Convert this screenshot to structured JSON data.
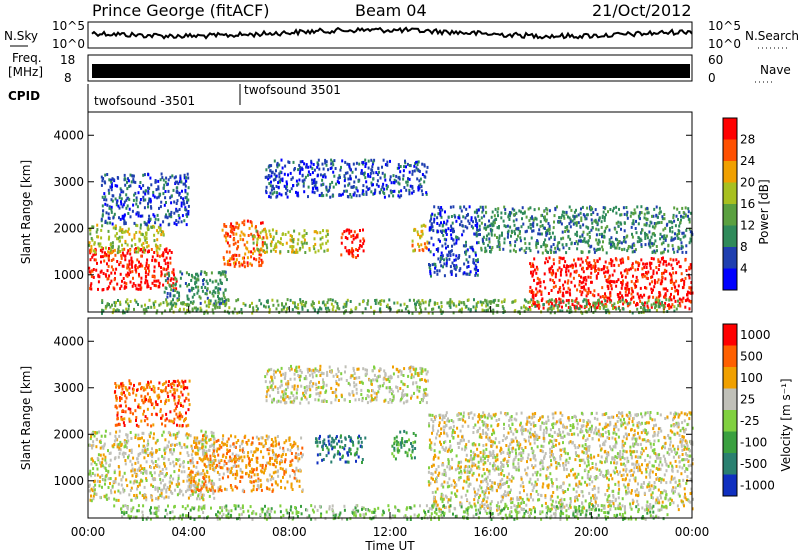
{
  "header": {
    "station": "Prince George (fitACF)",
    "beam": "Beam 04",
    "date": "21/Oct/2012"
  },
  "top_panels": {
    "nsky_label": "N.Sky",
    "nsky_ticks": [
      "10^5",
      "10^0"
    ],
    "nsearch_label": "N.Search",
    "nsearch_ticks": [
      "10^5",
      "10^0"
    ],
    "freq_label_line1": "Freq.",
    "freq_label_line2": "[MHz]",
    "freq_ticks": [
      "18",
      "8"
    ],
    "nave_label": "Nave",
    "nave_ticks": [
      "60",
      "0"
    ],
    "cpid_label": "CPID",
    "cpid_segments": [
      {
        "label": "twofsound -3501",
        "start_hour": 0
      },
      {
        "label": "twofsound 3501",
        "start_hour": 6
      }
    ]
  },
  "chart_data": [
    {
      "type": "heatmap",
      "title": "",
      "ylabel": "Slant Range [km]",
      "xlabel": "",
      "x_range_hours": [
        0,
        24
      ],
      "ylim": [
        200,
        4500
      ],
      "yticks": [
        "1000",
        "2000",
        "3000",
        "4000"
      ],
      "colorbar": {
        "label": "Power [dB]",
        "ticks": [
          "4",
          "8",
          "12",
          "16",
          "20",
          "24",
          "28"
        ],
        "colors": [
          "#0000ff",
          "#1f3fb0",
          "#2f8a5a",
          "#5aa040",
          "#a8c020",
          "#f0a000",
          "#ff5000",
          "#ff0000"
        ]
      },
      "regions": [
        {
          "t0": 0.0,
          "t1": 3.5,
          "r0": 700,
          "r1": 1600,
          "level": 7
        },
        {
          "t0": 0.0,
          "t1": 3.0,
          "r0": 1500,
          "r1": 2100,
          "level": 4
        },
        {
          "t0": 0.5,
          "t1": 4.0,
          "r0": 2100,
          "r1": 3200,
          "level": 1
        },
        {
          "t0": 3.0,
          "t1": 5.5,
          "r0": 400,
          "r1": 1100,
          "level": 2
        },
        {
          "t0": 5.3,
          "t1": 7.0,
          "r0": 1200,
          "r1": 2200,
          "level": 6
        },
        {
          "t0": 6.5,
          "t1": 9.5,
          "r0": 1500,
          "r1": 2000,
          "level": 4
        },
        {
          "t0": 7.0,
          "t1": 13.5,
          "r0": 2700,
          "r1": 3500,
          "level": 1
        },
        {
          "t0": 10.0,
          "t1": 11.0,
          "r0": 1400,
          "r1": 2000,
          "level": 7
        },
        {
          "t0": 12.8,
          "t1": 13.5,
          "r0": 1500,
          "r1": 2100,
          "level": 5
        },
        {
          "t0": 13.5,
          "t1": 15.5,
          "r0": 1000,
          "r1": 2500,
          "level": 1
        },
        {
          "t0": 15.5,
          "t1": 24.0,
          "r0": 1500,
          "r1": 2500,
          "level": 2
        },
        {
          "t0": 17.5,
          "t1": 24.0,
          "r0": 300,
          "r1": 1400,
          "level": 7
        },
        {
          "t0": 0.5,
          "t1": 23.5,
          "r0": 200,
          "r1": 500,
          "level": 3
        }
      ]
    },
    {
      "type": "heatmap",
      "title": "",
      "ylabel": "Slant Range [km]",
      "xlabel": "Time UT",
      "x_range_hours": [
        0,
        24
      ],
      "xticks": [
        "00:00",
        "04:00",
        "08:00",
        "12:00",
        "16:00",
        "20:00",
        "00:00"
      ],
      "ylim": [
        200,
        4500
      ],
      "yticks": [
        "1000",
        "2000",
        "3000",
        "4000"
      ],
      "colorbar": {
        "label": "Velocity [m s⁻¹]",
        "ticks": [
          "1000",
          "500",
          "100",
          "25",
          "-25",
          "-100",
          "-500",
          "-1000"
        ],
        "colors": [
          "#1030c0",
          "#2a8070",
          "#3aa040",
          "#80d040",
          "#c0c0b8",
          "#f0a000",
          "#ff6000",
          "#ff0000"
        ]
      },
      "regions": [
        {
          "t0": 0.0,
          "t1": 5.0,
          "r0": 600,
          "r1": 2100,
          "level": 4
        },
        {
          "t0": 1.0,
          "t1": 4.0,
          "r0": 2200,
          "r1": 3200,
          "level": 6
        },
        {
          "t0": 4.0,
          "t1": 8.5,
          "r0": 800,
          "r1": 2000,
          "level": 5
        },
        {
          "t0": 7.0,
          "t1": 13.5,
          "r0": 2700,
          "r1": 3500,
          "level": 4
        },
        {
          "t0": 9.0,
          "t1": 11.0,
          "r0": 1400,
          "r1": 2000,
          "level": 1
        },
        {
          "t0": 12.0,
          "t1": 13.0,
          "r0": 1500,
          "r1": 2100,
          "level": 2
        },
        {
          "t0": 13.5,
          "t1": 24.0,
          "r0": 400,
          "r1": 2500,
          "level": 4
        },
        {
          "t0": 1.0,
          "t1": 23.0,
          "r0": 200,
          "r1": 500,
          "level": 3
        }
      ]
    }
  ]
}
